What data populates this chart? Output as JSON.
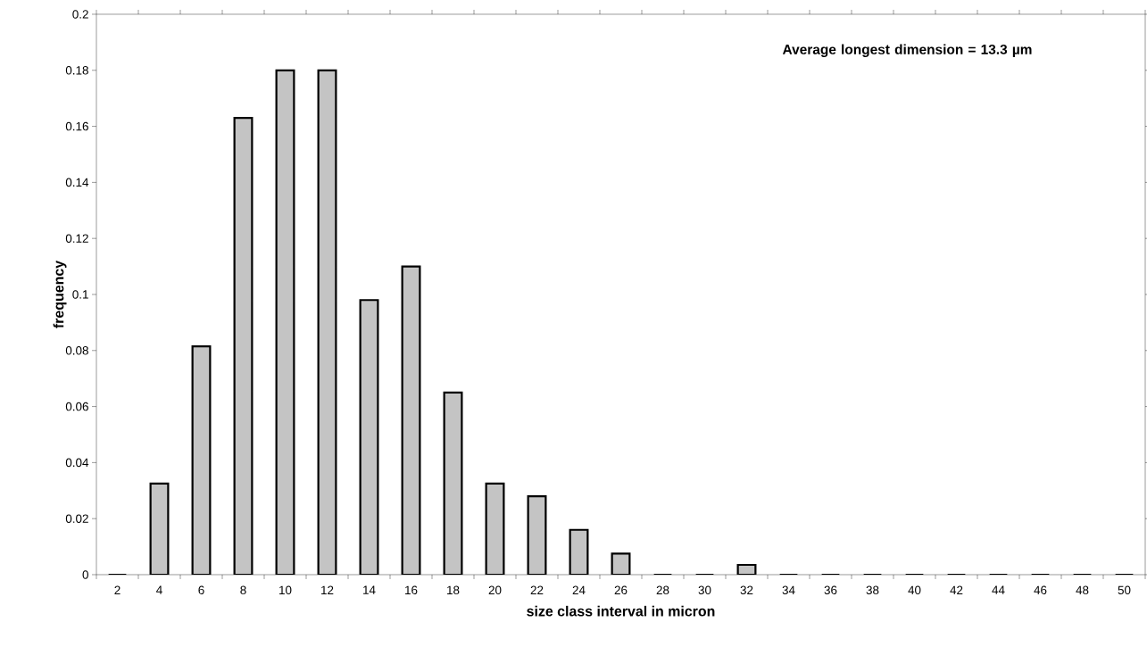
{
  "chart_data": {
    "type": "bar",
    "xlabel": "size class interval in micron",
    "ylabel": "frequency",
    "annotations": [
      "Average longest dimension = 13.3 µm"
    ],
    "categories": [
      "2",
      "4",
      "6",
      "8",
      "10",
      "12",
      "14",
      "16",
      "18",
      "20",
      "22",
      "24",
      "26",
      "28",
      "30",
      "32",
      "34",
      "36",
      "38",
      "40",
      "42",
      "44",
      "46",
      "48",
      "50"
    ],
    "values": [
      0,
      0.0325,
      0.0815,
      0.163,
      0.18,
      0.18,
      0.098,
      0.11,
      0.065,
      0.0325,
      0.028,
      0.016,
      0.0075,
      0,
      0,
      0.0035,
      0,
      0,
      0,
      0,
      0,
      0,
      0,
      0,
      0
    ],
    "color": "#c4c4c4",
    "ylim": [
      0,
      0.2
    ],
    "yticks": [
      0,
      0.02,
      0.04,
      0.06,
      0.08,
      0.1,
      0.12,
      0.14,
      0.16,
      0.18,
      0.2
    ],
    "grid": false
  }
}
